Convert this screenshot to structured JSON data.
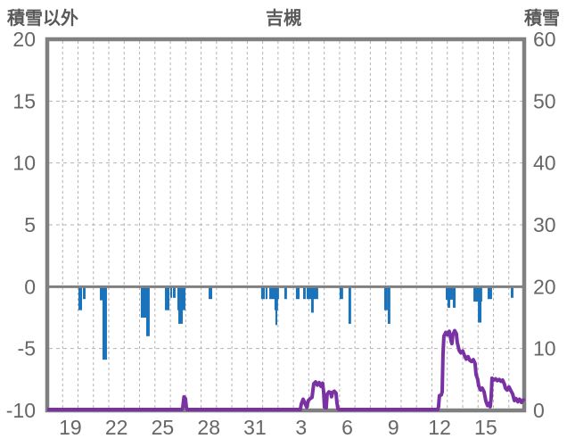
{
  "header": {
    "left_label": "積雪以外",
    "title": "吉槻",
    "right_label": "積雪"
  },
  "chart_data": {
    "type": "bar",
    "title": "吉槻",
    "subtitle": "",
    "left_axis": {
      "label": "積雪以外",
      "min": -10,
      "max": 20,
      "ticks": [
        20,
        15,
        10,
        5,
        0,
        -5,
        -10
      ]
    },
    "right_axis": {
      "label": "積雪",
      "min": 0,
      "max": 60,
      "ticks": [
        60,
        50,
        40,
        30,
        20,
        10,
        0
      ]
    },
    "x_axis": {
      "days_total": 31,
      "gridline_every_day": true,
      "tick_labels": [
        "19",
        "22",
        "25",
        "28",
        "31",
        "3",
        "6",
        "9",
        "12",
        "15"
      ],
      "tick_day_centers": [
        1.5,
        4.5,
        7.5,
        10.5,
        13.5,
        16.5,
        19.5,
        22.5,
        25.5,
        28.5
      ]
    },
    "colors": {
      "frame": "#808080",
      "zero_line": "#808080",
      "grid": "#b3b3b3",
      "bars": "#1b74bb",
      "snow_line": "#7a31a3",
      "tick_text": "#666666",
      "title_text": "#595959"
    },
    "series": [
      {
        "name": "積雪以外",
        "type": "bar",
        "axis": "left",
        "color": "#1b74bb",
        "bars": [
          [
            2.03,
            2.26,
            -1.9
          ],
          [
            2.32,
            2.49,
            -1.0
          ],
          [
            3.42,
            3.71,
            -1.1
          ],
          [
            3.59,
            3.88,
            -5.9
          ],
          [
            6.08,
            6.49,
            -2.5
          ],
          [
            6.43,
            6.66,
            -4.0
          ],
          [
            7.65,
            7.94,
            -1.9
          ],
          [
            8.0,
            8.11,
            -0.9
          ],
          [
            8.17,
            8.34,
            -0.9
          ],
          [
            8.46,
            8.98,
            -1.9
          ],
          [
            8.52,
            8.81,
            -3.0
          ],
          [
            10.49,
            10.72,
            -1.0
          ],
          [
            13.9,
            14.14,
            -1.0
          ],
          [
            14.19,
            14.31,
            -1.0
          ],
          [
            14.43,
            15.06,
            -1.0
          ],
          [
            14.77,
            15.0,
            -1.9
          ],
          [
            14.83,
            14.95,
            -3.1
          ],
          [
            15.41,
            15.58,
            -1.0
          ],
          [
            16.16,
            16.4,
            -1.0
          ],
          [
            16.63,
            16.8,
            -1.0
          ],
          [
            16.86,
            17.61,
            -1.0
          ],
          [
            17.15,
            17.32,
            -2.1
          ],
          [
            19.0,
            19.23,
            -1.0
          ],
          [
            19.58,
            19.75,
            -3.0
          ],
          [
            21.9,
            22.13,
            -1.9
          ],
          [
            22.13,
            22.3,
            -3.0
          ],
          [
            25.9,
            26.54,
            -1.05
          ],
          [
            26.01,
            26.19,
            -1.7
          ],
          [
            26.36,
            26.54,
            -1.7
          ],
          [
            27.7,
            28.27,
            -1.2
          ],
          [
            27.99,
            28.22,
            -2.9
          ],
          [
            28.62,
            28.91,
            -1.0
          ],
          [
            30.13,
            30.3,
            -0.9
          ]
        ]
      },
      {
        "name": "積雪",
        "type": "line",
        "axis": "right",
        "color": "#7a31a3",
        "points": [
          [
            0,
            0.15
          ],
          [
            8.75,
            0.15
          ],
          [
            8.81,
            0.5
          ],
          [
            8.89,
            2.2
          ],
          [
            8.98,
            1.9
          ],
          [
            9.04,
            0.5
          ],
          [
            9.1,
            0.15
          ],
          [
            16.45,
            0.15
          ],
          [
            16.51,
            1.0
          ],
          [
            16.63,
            1.8
          ],
          [
            16.74,
            1.2
          ],
          [
            16.86,
            0.5
          ],
          [
            16.97,
            1.6
          ],
          [
            17.09,
            1.9
          ],
          [
            17.21,
            2.1
          ],
          [
            17.32,
            4.3
          ],
          [
            17.44,
            4.6
          ],
          [
            17.55,
            4.1
          ],
          [
            17.67,
            4.5
          ],
          [
            17.79,
            3.9
          ],
          [
            17.9,
            4.4
          ],
          [
            17.96,
            3.0
          ],
          [
            18.02,
            0.5
          ],
          [
            18.13,
            0.4
          ],
          [
            18.19,
            2.6
          ],
          [
            18.31,
            3.0
          ],
          [
            18.42,
            2.9
          ],
          [
            18.48,
            2.2
          ],
          [
            18.54,
            2.9
          ],
          [
            18.66,
            3.1
          ],
          [
            18.77,
            2.8
          ],
          [
            18.83,
            1.2
          ],
          [
            18.89,
            0.3
          ],
          [
            18.94,
            0.15
          ],
          [
            25.38,
            0.15
          ],
          [
            25.43,
            0.6
          ],
          [
            25.49,
            2.4
          ],
          [
            25.61,
            2.5
          ],
          [
            25.67,
            3.0
          ],
          [
            25.72,
            9.0
          ],
          [
            25.78,
            12.0
          ],
          [
            25.9,
            12.6
          ],
          [
            26.01,
            12.2
          ],
          [
            26.13,
            12.8
          ],
          [
            26.25,
            11.2
          ],
          [
            26.3,
            10.8
          ],
          [
            26.36,
            12.2
          ],
          [
            26.48,
            12.9
          ],
          [
            26.59,
            12.4
          ],
          [
            26.65,
            11.0
          ],
          [
            26.77,
            9.7
          ],
          [
            26.88,
            9.3
          ],
          [
            27.0,
            9.6
          ],
          [
            27.11,
            8.9
          ],
          [
            27.23,
            8.3
          ],
          [
            27.35,
            8.7
          ],
          [
            27.46,
            8.1
          ],
          [
            27.58,
            7.9
          ],
          [
            27.69,
            8.2
          ],
          [
            27.81,
            7.6
          ],
          [
            27.87,
            5.8
          ],
          [
            27.98,
            5.0
          ],
          [
            28.04,
            4.0
          ],
          [
            28.16,
            3.3
          ],
          [
            28.27,
            3.6
          ],
          [
            28.39,
            3.0
          ],
          [
            28.51,
            1.5
          ],
          [
            28.62,
            0.8
          ],
          [
            28.74,
            1.2
          ],
          [
            28.79,
            0.6
          ],
          [
            28.85,
            2.0
          ],
          [
            28.91,
            5.2
          ],
          [
            29.02,
            4.9
          ],
          [
            29.14,
            5.1
          ],
          [
            29.25,
            4.8
          ],
          [
            29.37,
            5.0
          ],
          [
            29.49,
            4.7
          ],
          [
            29.6,
            4.9
          ],
          [
            29.72,
            4.2
          ],
          [
            29.78,
            3.6
          ],
          [
            29.89,
            3.3
          ],
          [
            30.01,
            3.8
          ],
          [
            30.13,
            3.2
          ],
          [
            30.24,
            2.7
          ],
          [
            30.36,
            1.6
          ],
          [
            30.47,
            1.9
          ],
          [
            30.59,
            1.4
          ],
          [
            30.7,
            1.8
          ],
          [
            30.82,
            1.3
          ],
          [
            30.94,
            1.7
          ],
          [
            31.0,
            1.5
          ]
        ]
      }
    ]
  }
}
